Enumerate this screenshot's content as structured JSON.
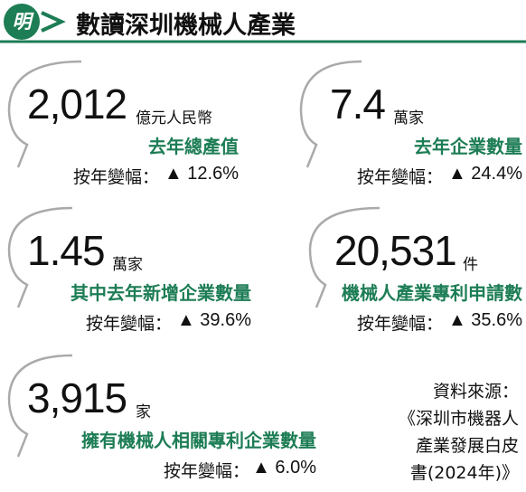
{
  "header": {
    "logo": "明",
    "title": "數讀深圳機械人產業"
  },
  "cards": [
    {
      "number": "2,012",
      "unit": "億元人民幣",
      "label": "去年總產值",
      "change_label": "按年變幅：",
      "change": "▲ 12.6%"
    },
    {
      "number": "7.4",
      "unit": "萬家",
      "label": "去年企業數量",
      "change_label": "按年變幅：",
      "change": "▲ 24.4%"
    },
    {
      "number": "1.45",
      "unit": "萬家",
      "label": "其中去年新增企業數量",
      "change_label": "按年變幅：",
      "change": "▲ 39.6%"
    },
    {
      "number": "20,531",
      "unit": "件",
      "label": "機械人產業專利申請數",
      "change_label": "按年變幅：",
      "change": "▲ 35.6%"
    },
    {
      "number": "3,915",
      "unit": "家",
      "label": "擁有機械人相關專利企業數量",
      "change_label": "按年變幅：",
      "change": "▲ 6.0%"
    }
  ],
  "source": {
    "label": "資料來源：",
    "lines": [
      "《深圳市機器人",
      "產業發展白皮",
      "書(2024年)》"
    ]
  }
}
